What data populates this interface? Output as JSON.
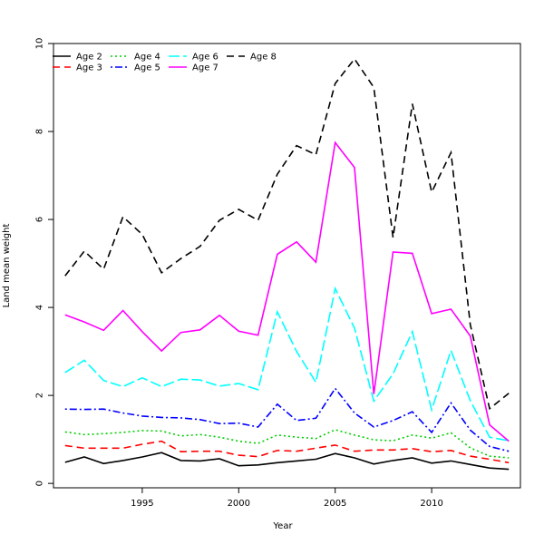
{
  "chart_data": {
    "type": "line",
    "xlabel": "Year",
    "ylabel": "Land mean weight",
    "xlim": [
      1990.4,
      2014.6
    ],
    "ylim": [
      -0.1,
      10.0
    ],
    "xticks": [
      1995,
      2000,
      2005,
      2010
    ],
    "yticks": [
      0,
      2,
      4,
      6,
      8,
      10
    ],
    "grid": false,
    "legend_position": "top-left",
    "x": [
      1991,
      1992,
      1993,
      1994,
      1995,
      1996,
      1997,
      1998,
      1999,
      2000,
      2001,
      2002,
      2003,
      2004,
      2005,
      2006,
      2007,
      2008,
      2009,
      2010,
      2011,
      2012,
      2013,
      2014
    ],
    "series": [
      {
        "name": "Age 2",
        "color": "#000000",
        "dash": "solid",
        "values": [
          0.48,
          0.6,
          0.45,
          0.52,
          0.6,
          0.7,
          0.52,
          0.51,
          0.56,
          0.4,
          0.42,
          0.47,
          0.51,
          0.55,
          0.68,
          0.58,
          0.44,
          0.52,
          0.58,
          0.46,
          0.51,
          0.43,
          0.35,
          0.32
        ]
      },
      {
        "name": "Age 3",
        "color": "#ff0000",
        "dash": "dashed",
        "values": [
          0.86,
          0.8,
          0.8,
          0.8,
          0.89,
          0.96,
          0.72,
          0.73,
          0.73,
          0.64,
          0.61,
          0.75,
          0.73,
          0.8,
          0.87,
          0.73,
          0.76,
          0.76,
          0.79,
          0.72,
          0.75,
          0.62,
          0.55,
          0.47
        ]
      },
      {
        "name": "Age 4",
        "color": "#00cd00",
        "dash": "dotted",
        "values": [
          1.17,
          1.11,
          1.13,
          1.16,
          1.2,
          1.19,
          1.08,
          1.11,
          1.05,
          0.96,
          0.91,
          1.1,
          1.05,
          1.02,
          1.22,
          1.1,
          0.99,
          0.97,
          1.1,
          1.03,
          1.15,
          0.81,
          0.62,
          0.58
        ]
      },
      {
        "name": "Age 5",
        "color": "#0000ff",
        "dash": "dotdash",
        "values": [
          1.69,
          1.68,
          1.69,
          1.6,
          1.53,
          1.5,
          1.49,
          1.45,
          1.36,
          1.37,
          1.28,
          1.8,
          1.43,
          1.48,
          2.16,
          1.6,
          1.28,
          1.43,
          1.63,
          1.16,
          1.83,
          1.21,
          0.84,
          0.73
        ]
      },
      {
        "name": "Age 6",
        "color": "#00ffff",
        "dash": "longdash",
        "values": [
          2.52,
          2.8,
          2.34,
          2.2,
          2.4,
          2.2,
          2.37,
          2.35,
          2.21,
          2.27,
          2.13,
          3.9,
          3.0,
          2.3,
          4.43,
          3.53,
          1.87,
          2.49,
          3.45,
          1.67,
          3.02,
          1.88,
          1.05,
          0.97
        ]
      },
      {
        "name": "Age 7",
        "color": "#ff00ff",
        "dash": "solid",
        "values": [
          3.83,
          3.67,
          3.48,
          3.93,
          3.45,
          3.01,
          3.43,
          3.49,
          3.82,
          3.46,
          3.37,
          5.21,
          5.49,
          5.03,
          7.75,
          7.18,
          2.03,
          5.26,
          5.23,
          3.86,
          3.96,
          3.35,
          1.33,
          0.96
        ]
      },
      {
        "name": "Age 8",
        "color": "#000000",
        "dash": "dashed",
        "values": [
          4.72,
          5.28,
          4.87,
          6.06,
          5.66,
          4.79,
          5.11,
          5.39,
          5.98,
          6.23,
          5.98,
          7.03,
          7.68,
          7.47,
          9.09,
          9.65,
          9.0,
          5.59,
          8.63,
          6.62,
          7.52,
          3.61,
          1.7,
          2.05
        ]
      }
    ]
  }
}
